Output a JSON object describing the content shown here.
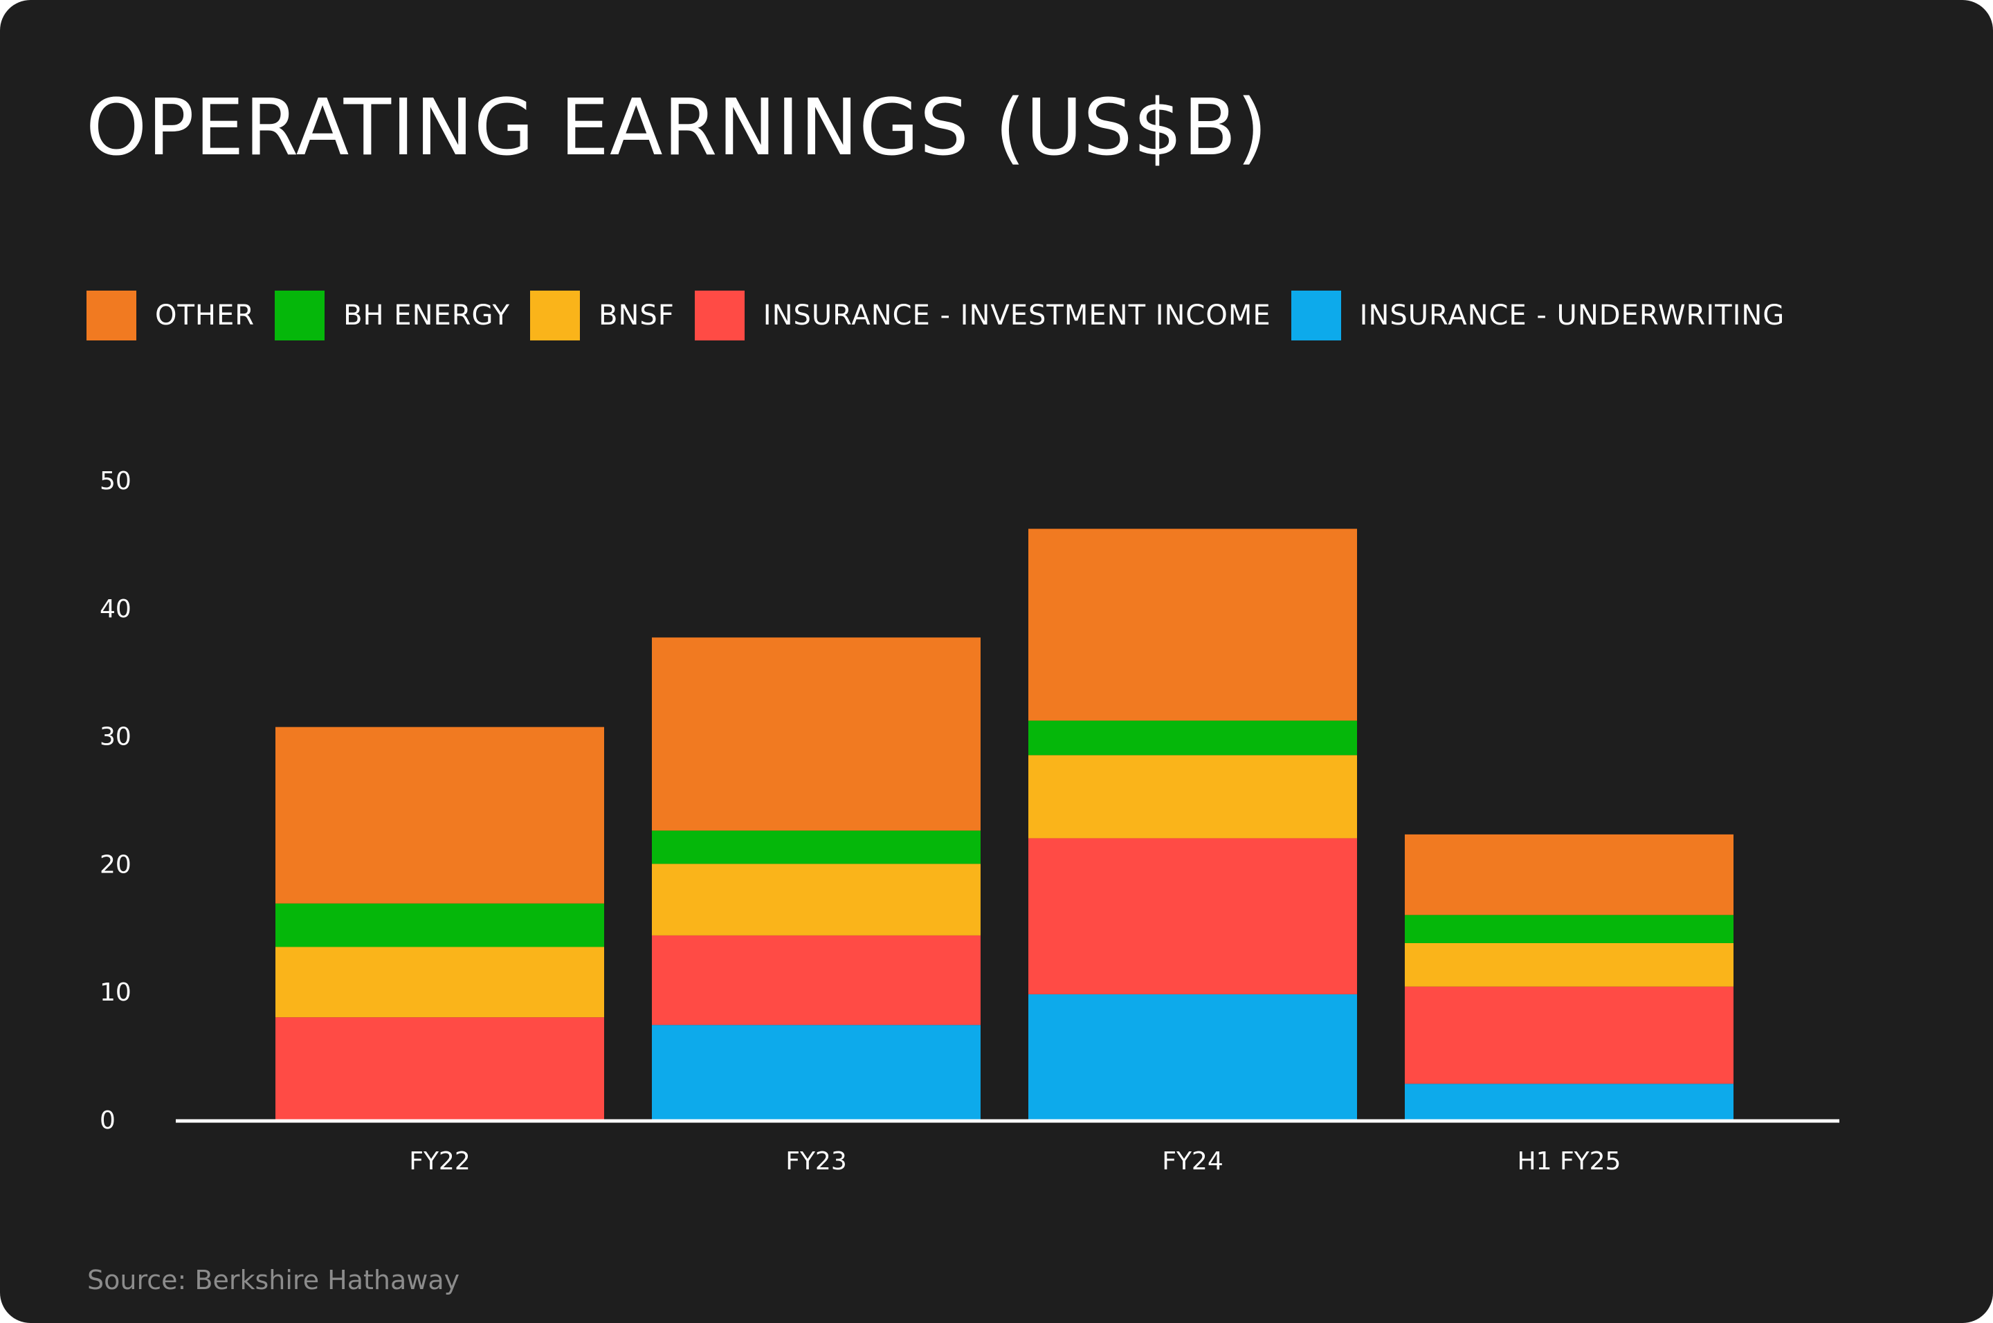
{
  "chart_data": {
    "type": "bar",
    "stacked": true,
    "title": "OPERATING EARNINGS (US$B)",
    "categories": [
      "FY22",
      "FY23",
      "FY24",
      "H1 FY25"
    ],
    "series": [
      {
        "name": "INSURANCE - UNDERWRITING",
        "color": "#0DAAEB",
        "values": [
          0,
          7.4,
          9.8,
          2.8
        ]
      },
      {
        "name": "INSURANCE - INVESTMENT INCOME",
        "color": "#FF4B45",
        "values": [
          8.0,
          7.0,
          12.2,
          7.6
        ]
      },
      {
        "name": "BNSF",
        "color": "#FAB41A",
        "values": [
          5.5,
          5.6,
          6.5,
          3.4
        ]
      },
      {
        "name": "BH ENERGY",
        "color": "#05B70A",
        "values": [
          3.4,
          2.6,
          2.7,
          2.2
        ]
      },
      {
        "name": "OTHER",
        "color": "#F17A21",
        "values": [
          13.8,
          15.1,
          15.0,
          6.3
        ]
      }
    ],
    "legend_order": [
      "OTHER",
      "BH ENERGY",
      "BNSF",
      "INSURANCE - INVESTMENT INCOME",
      "INSURANCE - UNDERWRITING"
    ],
    "legend_placement": "top-left",
    "ylim": [
      0,
      50
    ],
    "yticks": [
      "0",
      "10",
      "20",
      "30",
      "40",
      "50"
    ],
    "grid": false,
    "xlabel": "",
    "ylabel": ""
  },
  "source": "Source: Berkshire Hathaway",
  "background": "#1e1e1e"
}
